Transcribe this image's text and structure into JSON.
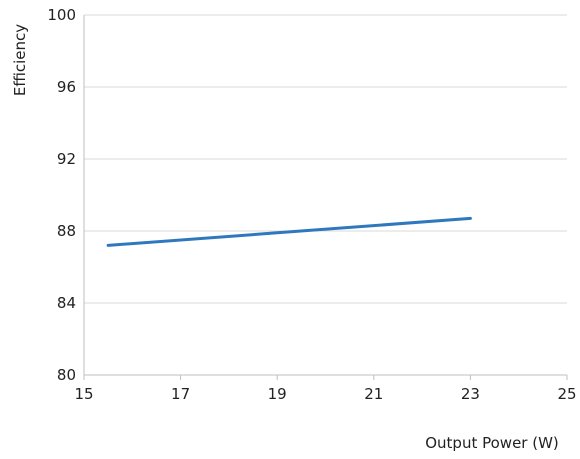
{
  "chart_data": {
    "type": "line",
    "title": "",
    "xlabel": "Output Power (W)",
    "ylabel": "Efficiency",
    "xlim": [
      15,
      25
    ],
    "ylim": [
      80,
      100
    ],
    "x_ticks": [
      "15",
      "17",
      "19",
      "21",
      "23",
      "25"
    ],
    "y_ticks": [
      "80",
      "84",
      "88",
      "92",
      "96",
      "100"
    ],
    "grid": "horizontal",
    "legend": "none",
    "series": [
      {
        "color": "#2f78bd",
        "x": [
          15.5,
          19,
          23
        ],
        "y": [
          87.2,
          87.9,
          88.7
        ]
      }
    ],
    "colors": {
      "line": "#2f78bd",
      "grid": "#d9d9d9",
      "axis": "#bfbfbf"
    }
  }
}
